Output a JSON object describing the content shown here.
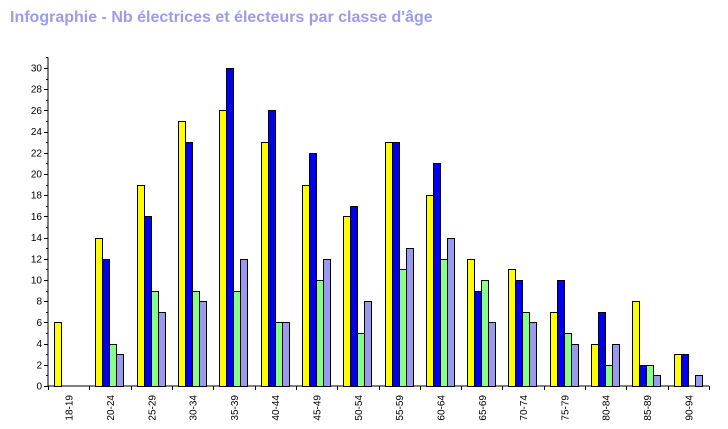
{
  "title": "Infographie - Nb électrices et électeurs par classe d'âge",
  "colors": {
    "title": "#9b9bef",
    "series": [
      "#ffff00",
      "#0000ee",
      "#88ff88",
      "#9999ee"
    ],
    "stroke": "#000000"
  },
  "chart_data": {
    "type": "bar",
    "title": "Infographie - Nb électrices et électeurs par classe d'âge",
    "xlabel": "",
    "ylabel": "",
    "ylim": [
      0,
      31
    ],
    "yticks": [
      0,
      2,
      4,
      6,
      8,
      10,
      12,
      14,
      16,
      18,
      20,
      22,
      24,
      26,
      28,
      30
    ],
    "grid": false,
    "legend": "none",
    "categories": [
      "18-19",
      "20-24",
      "25-29",
      "30-34",
      "35-39",
      "40-44",
      "45-49",
      "50-54",
      "55-59",
      "60-64",
      "65-69",
      "70-74",
      "75-79",
      "80-84",
      "85-89",
      "90-94"
    ],
    "series": [
      {
        "values": [
          6,
          14,
          19,
          25,
          26,
          23,
          19,
          16,
          23,
          18,
          12,
          11,
          7,
          4,
          8,
          3
        ]
      },
      {
        "values": [
          0,
          12,
          16,
          23,
          30,
          26,
          22,
          17,
          23,
          21,
          9,
          10,
          10,
          7,
          2,
          3
        ]
      },
      {
        "values": [
          0,
          4,
          9,
          9,
          9,
          6,
          10,
          5,
          11,
          12,
          10,
          7,
          5,
          2,
          2,
          0
        ]
      },
      {
        "values": [
          0,
          3,
          7,
          8,
          12,
          6,
          12,
          8,
          13,
          14,
          6,
          6,
          4,
          4,
          1,
          1
        ]
      }
    ]
  }
}
